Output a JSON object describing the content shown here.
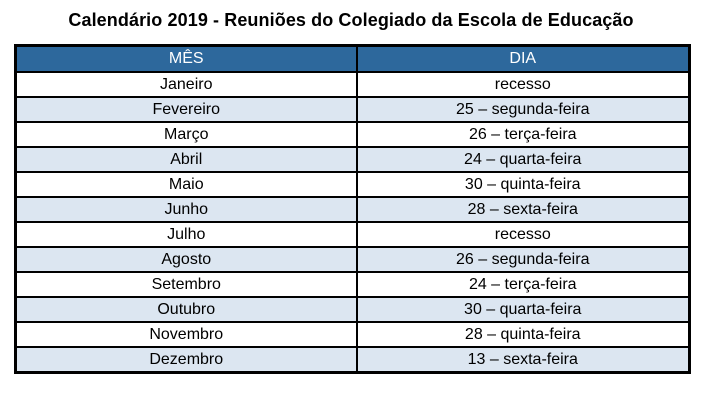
{
  "title": "Calendário 2019 - Reuniões do Colegiado da Escola de Educação",
  "table": {
    "headers": [
      "MÊS",
      "DIA"
    ],
    "rows": [
      {
        "month": "Janeiro",
        "day": "recesso"
      },
      {
        "month": "Fevereiro",
        "day": "25 – segunda-feira"
      },
      {
        "month": "Março",
        "day": "26 – terça-feira"
      },
      {
        "month": "Abril",
        "day": "24 – quarta-feira"
      },
      {
        "month": "Maio",
        "day": "30 – quinta-feira"
      },
      {
        "month": "Junho",
        "day": "28 – sexta-feira"
      },
      {
        "month": "Julho",
        "day": "recesso"
      },
      {
        "month": "Agosto",
        "day": "26 – segunda-feira"
      },
      {
        "month": "Setembro",
        "day": "24 – terça-feira"
      },
      {
        "month": "Outubro",
        "day": "30 – quarta-feira"
      },
      {
        "month": "Novembro",
        "day": "28 – quinta-feira"
      },
      {
        "month": "Dezembro",
        "day": "13 – sexta-feira"
      }
    ]
  },
  "colors": {
    "header_bg": "#2d689c",
    "header_text": "#ffffff",
    "row_bg": "#ffffff",
    "row_alt_bg": "#dce6f1",
    "border": "#000000"
  }
}
